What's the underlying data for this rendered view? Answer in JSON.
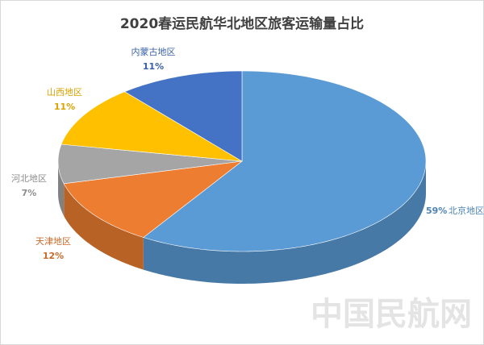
{
  "chart_data": {
    "type": "pie",
    "title": "2020春运民航华北地区旅客运输量占比",
    "categories": [
      "北京地区",
      "天津地区",
      "河北地区",
      "山西地区",
      "内蒙古地区"
    ],
    "values": [
      59,
      12,
      7,
      11,
      11
    ],
    "value_labels": [
      "59%",
      "12%",
      "7%",
      "11%",
      "11%"
    ],
    "colors": [
      "#5b9bd5",
      "#ed7d31",
      "#a5a5a5",
      "#ffc000",
      "#4472c4"
    ],
    "watermark": "中国民航网"
  }
}
